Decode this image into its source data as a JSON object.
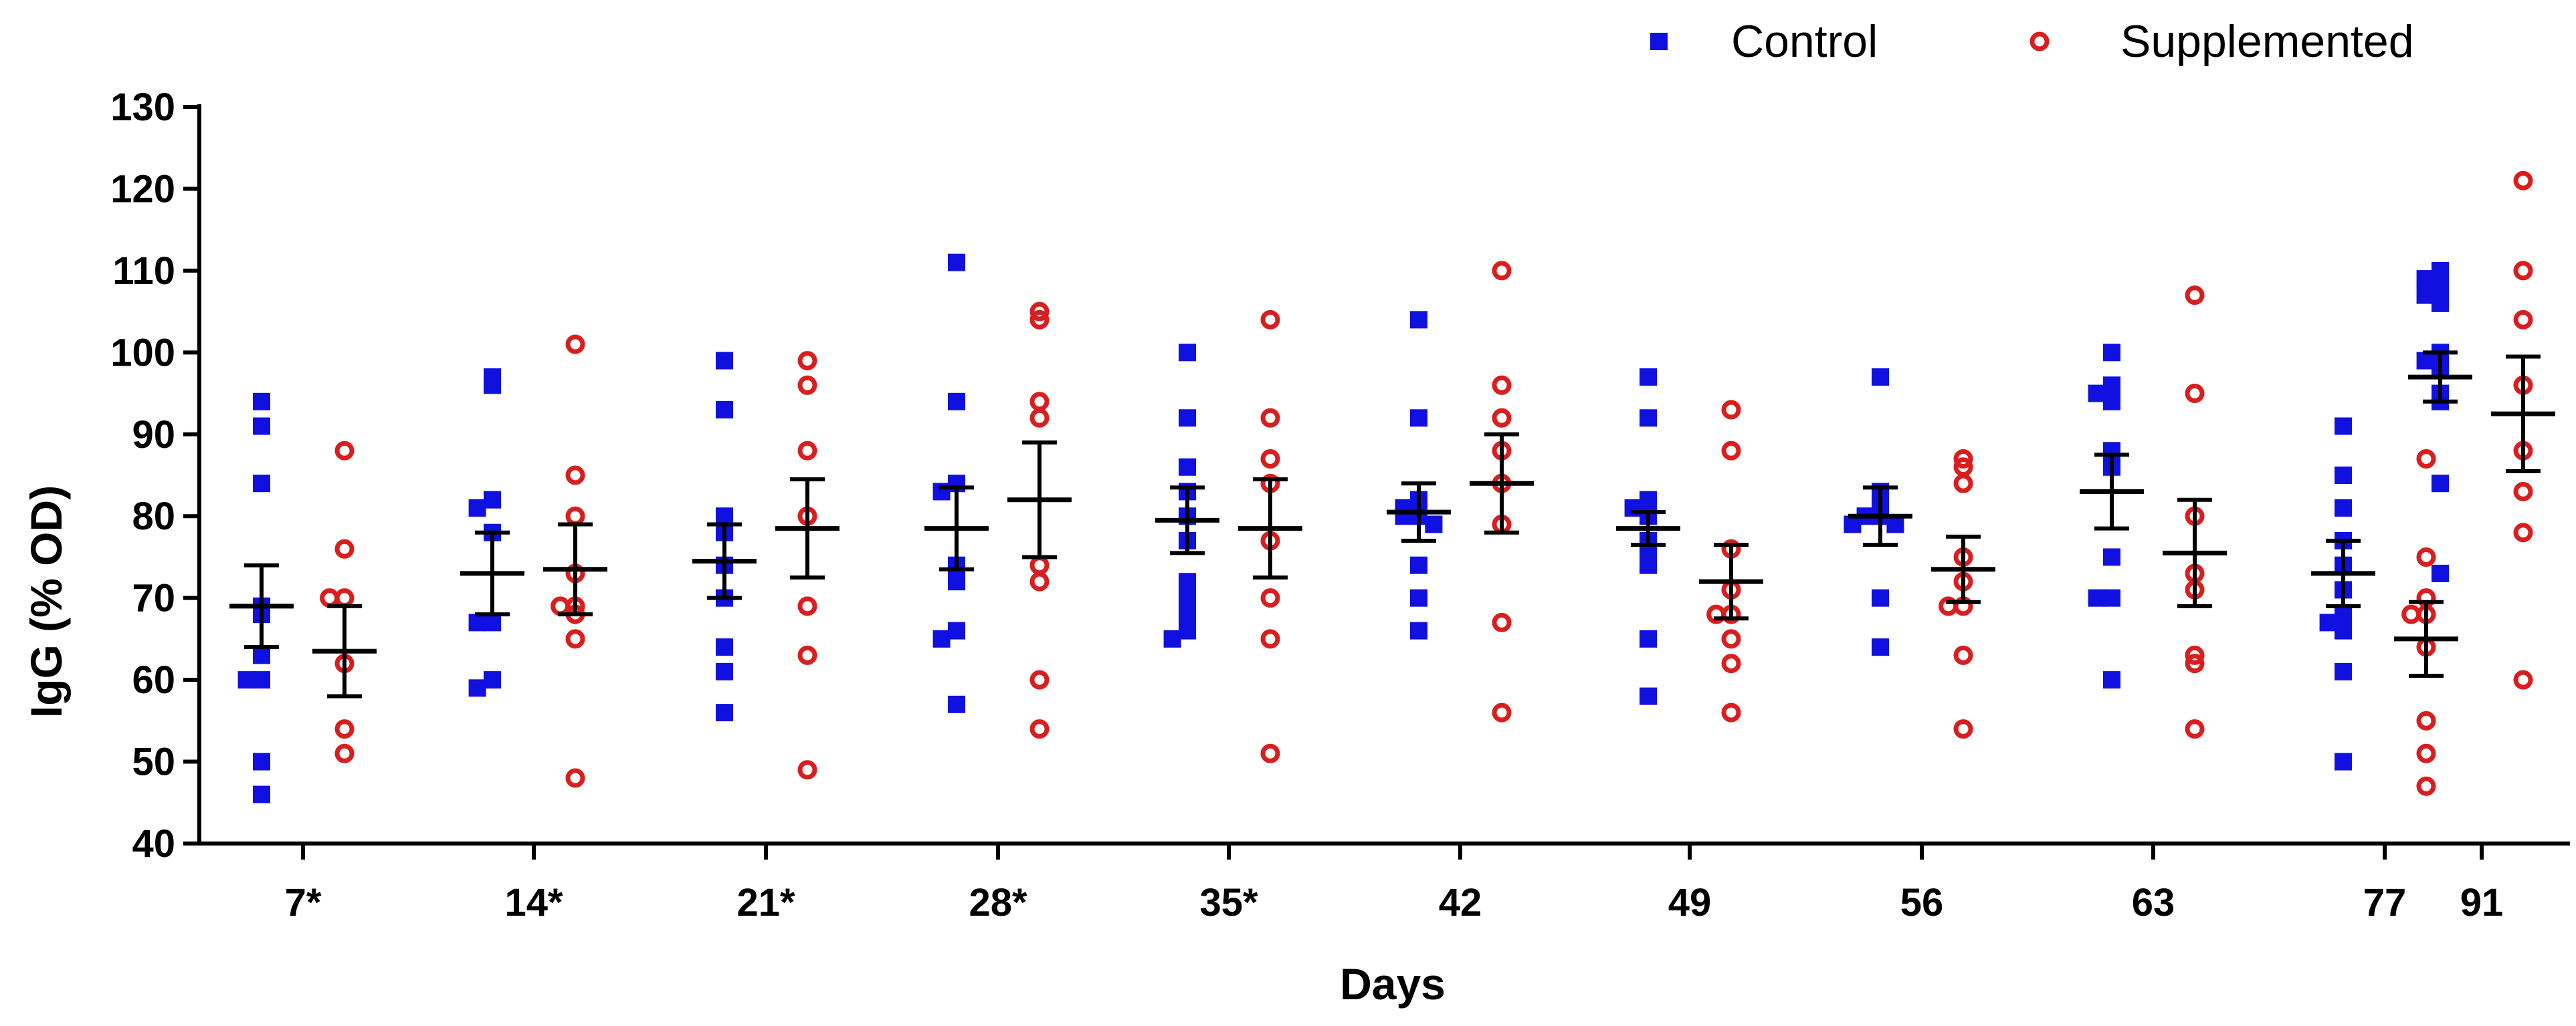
{
  "chart_data": {
    "type": "scatter",
    "title": "",
    "xlabel": "Days",
    "ylabel": "IgG (% OD)",
    "ylim": [
      40,
      130
    ],
    "yticks": [
      "40",
      "50",
      "60",
      "70",
      "80",
      "90",
      "100",
      "110",
      "120",
      "130"
    ],
    "categories": [
      "7*",
      "14*",
      "21*",
      "28*",
      "35*",
      "42",
      "49",
      "56",
      "63",
      "77",
      "91"
    ],
    "series": [
      {
        "name": "Control",
        "marker": "square",
        "color": "#1010e0",
        "means": [
          69,
          73,
          74.5,
          78.5,
          79.5,
          80.5,
          78.5,
          80,
          83,
          73,
          97
        ],
        "errors": [
          5,
          5,
          4.5,
          5,
          4,
          3.5,
          2,
          3.5,
          4.5,
          4,
          3
        ],
        "points": [
          [
            94,
            91,
            84,
            69,
            68,
            63,
            60,
            60,
            50,
            46
          ],
          [
            97,
            96,
            82,
            81,
            78,
            67,
            67,
            60,
            59
          ],
          [
            99,
            93,
            80,
            78,
            74,
            70,
            64,
            61,
            56
          ],
          [
            111,
            94,
            84,
            83,
            74,
            72,
            66,
            65,
            57
          ],
          [
            100,
            92,
            86,
            83,
            80,
            77,
            72,
            70,
            68,
            66,
            65
          ],
          [
            104,
            92,
            82,
            81,
            80,
            80,
            79,
            74,
            70,
            66
          ],
          [
            97,
            92,
            82,
            81,
            80,
            77,
            76,
            74,
            65,
            58
          ],
          [
            97,
            83,
            81,
            80,
            80,
            79,
            79,
            70,
            64
          ],
          [
            100,
            96,
            95,
            94,
            88,
            86,
            75,
            70,
            70,
            60
          ],
          [
            91,
            85,
            81,
            77,
            74,
            71,
            68,
            67,
            66,
            61,
            50
          ],
          [
            110,
            109,
            108,
            107,
            106,
            100,
            99,
            98,
            95,
            94,
            84,
            73
          ]
        ]
      },
      {
        "name": "Supplemented",
        "marker": "open-circle",
        "color": "#d81e1e",
        "means": [
          63.5,
          73.5,
          78.5,
          82,
          78.5,
          84,
          72,
          73.5,
          75.5,
          65,
          92.5
        ],
        "errors": [
          5.5,
          5.5,
          6,
          7,
          6,
          6,
          4.5,
          4,
          6.5,
          4.5,
          7
        ],
        "points": [
          [
            88,
            76,
            70,
            70,
            62,
            54,
            51
          ],
          [
            101,
            85,
            80,
            73,
            69,
            69,
            68,
            65,
            48
          ],
          [
            99,
            96,
            88,
            80,
            69,
            63,
            49
          ],
          [
            105,
            104,
            94,
            92,
            74,
            72,
            60,
            54
          ],
          [
            104,
            92,
            87,
            84,
            77,
            70,
            65,
            51
          ],
          [
            110,
            96,
            92,
            88,
            84,
            79,
            67,
            56
          ],
          [
            93,
            88,
            76,
            71,
            68,
            68,
            65,
            62,
            56
          ],
          [
            87,
            86,
            84,
            75,
            72,
            69,
            69,
            63,
            54
          ],
          [
            107,
            95,
            80,
            73,
            71,
            63,
            62,
            54
          ],
          [
            87,
            75,
            70,
            68,
            68,
            64,
            55,
            51,
            47
          ],
          [
            121,
            110,
            104,
            96,
            88,
            83,
            78,
            60
          ]
        ]
      }
    ]
  }
}
